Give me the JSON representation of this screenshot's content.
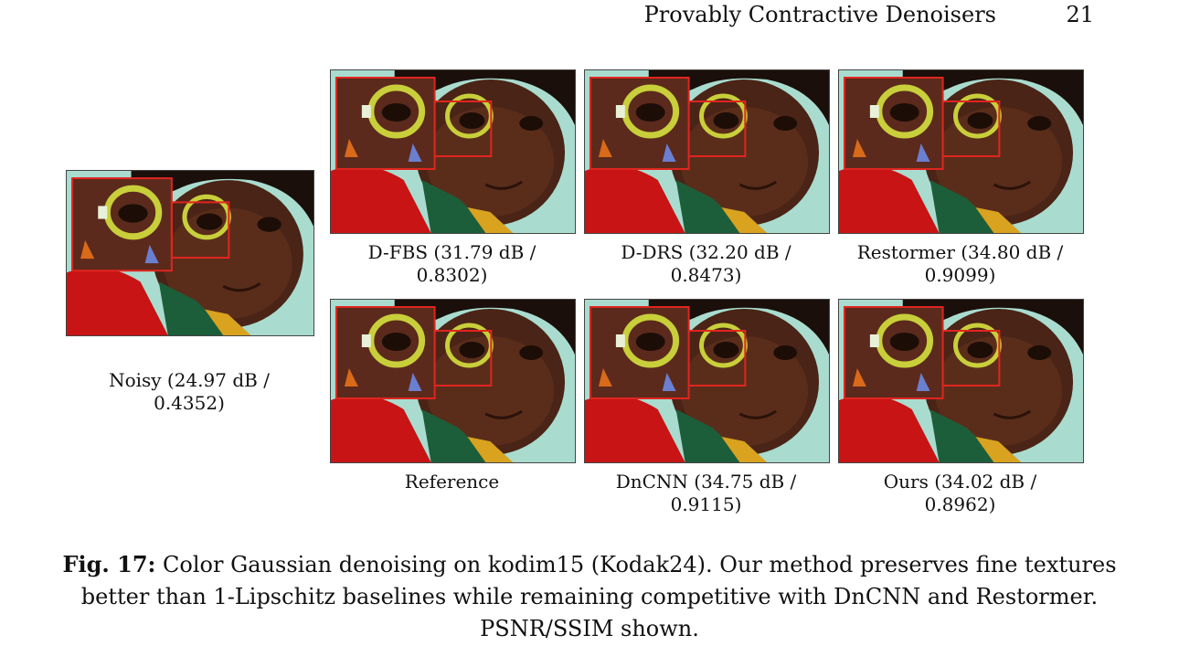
{
  "header": {
    "title": "Provably Contractive Denoisers",
    "page_number": "21"
  },
  "panels": [
    {
      "id": "noisy",
      "caption_line1": "Noisy (24.97 dB /",
      "caption_line2": "0.4352)"
    },
    {
      "id": "dfbs",
      "caption_line1": "D-FBS (31.79 dB /",
      "caption_line2": "0.8302)"
    },
    {
      "id": "ddrs",
      "caption_line1": "D-DRS (32.20 dB /",
      "caption_line2": "0.8473)"
    },
    {
      "id": "restormer",
      "caption_line1": "Restormer (34.80 dB /",
      "caption_line2": "0.9099)"
    },
    {
      "id": "reference",
      "caption_line1": "Reference",
      "caption_line2": ""
    },
    {
      "id": "dncnn",
      "caption_line1": "DnCNN (34.75 dB /",
      "caption_line2": "0.9115)"
    },
    {
      "id": "ours",
      "caption_line1": "Ours (34.02 dB /",
      "caption_line2": "0.8962)"
    }
  ],
  "figure_caption": {
    "label": "Fig. 17:",
    "text": "Color Gaussian denoising on kodim15 (Kodak24). Our method preserves fine textures better than 1-Lipschitz baselines while remaining competitive with DnCNN and Restormer. PSNR/SSIM shown."
  }
}
